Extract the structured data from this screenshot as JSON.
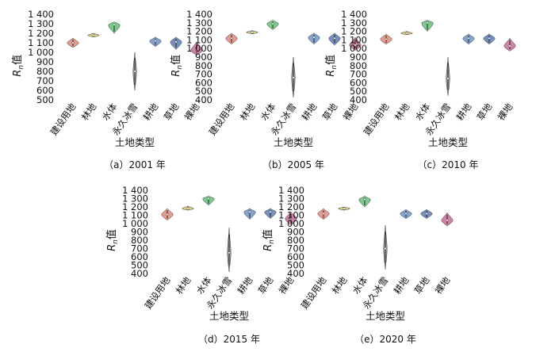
{
  "chart_data": [
    {
      "type": "violin",
      "caption": "（a）2001 年",
      "xlabel": "土地类型",
      "ylabel": "Rn值",
      "ylim": [
        500,
        1400
      ],
      "yticks": [
        500,
        600,
        700,
        800,
        900,
        1000,
        1100,
        1200,
        1300,
        1400
      ],
      "ytick_labels": [
        "500",
        "600",
        "700",
        "800",
        "900",
        "1 000",
        "1 100",
        "1 200",
        "1 300",
        "1 400"
      ],
      "categories": [
        "建设用地",
        "林地",
        "水体",
        "永久冰雪",
        "耕地",
        "草地",
        "裸地"
      ],
      "series": [
        {
          "min": 1050,
          "max": 1150,
          "median": 1100,
          "color": "#e07b6a"
        },
        {
          "min": 1160,
          "max": 1200,
          "median": 1180,
          "color": "#d7c15a"
        },
        {
          "min": 1200,
          "max": 1320,
          "median": 1290,
          "color": "#52b86a"
        },
        {
          "min": 600,
          "max": 1000,
          "median": 800,
          "color": "#8a8a8a"
        },
        {
          "min": 1060,
          "max": 1160,
          "median": 1120,
          "color": "#5a86c0"
        },
        {
          "min": 1030,
          "max": 1160,
          "median": 1110,
          "color": "#4a6aa8"
        },
        {
          "min": 970,
          "max": 1110,
          "median": 1020,
          "color": "#c05a8a"
        }
      ]
    },
    {
      "type": "violin",
      "caption": "（b）2005 年",
      "xlabel": "土地类型",
      "ylabel": "Rn值",
      "ylim": [
        400,
        1400
      ],
      "yticks": [
        400,
        500,
        600,
        700,
        800,
        900,
        1000,
        1100,
        1200,
        1300,
        1400
      ],
      "ytick_labels": [
        "400",
        "500",
        "600",
        "700",
        "800",
        "900",
        "1 000",
        "1 100",
        "1 200",
        "1 300",
        "1 400"
      ],
      "categories": [
        "建设用地",
        "林地",
        "水体",
        "永久冰雪",
        "耕地",
        "草地",
        "裸地"
      ],
      "series": [
        {
          "min": 1050,
          "max": 1180,
          "median": 1120,
          "color": "#e07b6a"
        },
        {
          "min": 1170,
          "max": 1210,
          "median": 1190,
          "color": "#d7c15a"
        },
        {
          "min": 1220,
          "max": 1330,
          "median": 1290,
          "color": "#52b86a"
        },
        {
          "min": 430,
          "max": 900,
          "median": 660,
          "color": "#8a8a8a"
        },
        {
          "min": 1050,
          "max": 1180,
          "median": 1130,
          "color": "#5a86c0"
        },
        {
          "min": 1040,
          "max": 1180,
          "median": 1120,
          "color": "#4a6aa8"
        },
        {
          "min": 980,
          "max": 1130,
          "median": 1040,
          "color": "#c05a8a"
        }
      ]
    },
    {
      "type": "violin",
      "caption": "（c）2010 年",
      "xlabel": "土地类型",
      "ylabel": "Rn值",
      "ylim": [
        400,
        1400
      ],
      "yticks": [
        400,
        500,
        600,
        700,
        800,
        900,
        1000,
        1100,
        1200,
        1300,
        1400
      ],
      "ytick_labels": [
        "400",
        "500",
        "600",
        "700",
        "800",
        "900",
        "1 000",
        "1 100",
        "1 200",
        "1 300",
        "1 400"
      ],
      "categories": [
        "建设用地",
        "林地",
        "水体",
        "永久冰雪",
        "耕地",
        "草地",
        "裸地"
      ],
      "series": [
        {
          "min": 1050,
          "max": 1170,
          "median": 1110,
          "color": "#e07b6a"
        },
        {
          "min": 1160,
          "max": 1200,
          "median": 1180,
          "color": "#d7c15a"
        },
        {
          "min": 1200,
          "max": 1330,
          "median": 1300,
          "color": "#52b86a"
        },
        {
          "min": 450,
          "max": 900,
          "median": 650,
          "color": "#8a8a8a"
        },
        {
          "min": 1050,
          "max": 1170,
          "median": 1120,
          "color": "#5a86c0"
        },
        {
          "min": 1050,
          "max": 1170,
          "median": 1120,
          "color": "#4a6aa8"
        },
        {
          "min": 970,
          "max": 1120,
          "median": 1030,
          "color": "#c05a8a"
        }
      ]
    },
    {
      "type": "violin",
      "caption": "（d）2015 年",
      "xlabel": "土地类型",
      "ylabel": "Rn值",
      "ylim": [
        400,
        1400
      ],
      "yticks": [
        400,
        500,
        600,
        700,
        800,
        900,
        1000,
        1100,
        1200,
        1300,
        1400
      ],
      "ytick_labels": [
        "400",
        "500",
        "600",
        "700",
        "800",
        "900",
        "1 000",
        "1 100",
        "1 200",
        "1 300",
        "1 400"
      ],
      "categories": [
        "建设用地",
        "林地",
        "水体",
        "永久冰雪",
        "耕地",
        "草地",
        "裸地"
      ],
      "series": [
        {
          "min": 1040,
          "max": 1180,
          "median": 1110,
          "color": "#e07b6a"
        },
        {
          "min": 1160,
          "max": 1210,
          "median": 1180,
          "color": "#d7c15a"
        },
        {
          "min": 1220,
          "max": 1330,
          "median": 1300,
          "color": "#52b86a"
        },
        {
          "min": 420,
          "max": 950,
          "median": 650,
          "color": "#8a8a8a"
        },
        {
          "min": 1050,
          "max": 1180,
          "median": 1140,
          "color": "#5a86c0"
        },
        {
          "min": 1060,
          "max": 1180,
          "median": 1140,
          "color": "#4a6aa8"
        },
        {
          "min": 980,
          "max": 1140,
          "median": 1060,
          "color": "#c05a8a"
        }
      ]
    },
    {
      "type": "violin",
      "caption": "（e）2020 年",
      "xlabel": "土地类型",
      "ylabel": "Rn值",
      "ylim": [
        400,
        1400
      ],
      "yticks": [
        400,
        500,
        600,
        700,
        800,
        900,
        1000,
        1100,
        1200,
        1300,
        1400
      ],
      "ytick_labels": [
        "400",
        "500",
        "600",
        "700",
        "800",
        "900",
        "1 000",
        "1 100",
        "1 200",
        "1 300",
        "1 400"
      ],
      "categories": [
        "建设用地",
        "林地",
        "水体",
        "永久冰雪",
        "耕地",
        "草地",
        "裸地"
      ],
      "series": [
        {
          "min": 1050,
          "max": 1180,
          "median": 1120,
          "color": "#e07b6a"
        },
        {
          "min": 1160,
          "max": 1200,
          "median": 1180,
          "color": "#d7c15a"
        },
        {
          "min": 1200,
          "max": 1330,
          "median": 1290,
          "color": "#52b86a"
        },
        {
          "min": 450,
          "max": 980,
          "median": 700,
          "color": "#8a8a8a"
        },
        {
          "min": 1060,
          "max": 1170,
          "median": 1120,
          "color": "#5a86c0"
        },
        {
          "min": 1060,
          "max": 1170,
          "median": 1120,
          "color": "#4a6aa8"
        },
        {
          "min": 970,
          "max": 1130,
          "median": 1040,
          "color": "#c05a8a"
        }
      ]
    }
  ]
}
